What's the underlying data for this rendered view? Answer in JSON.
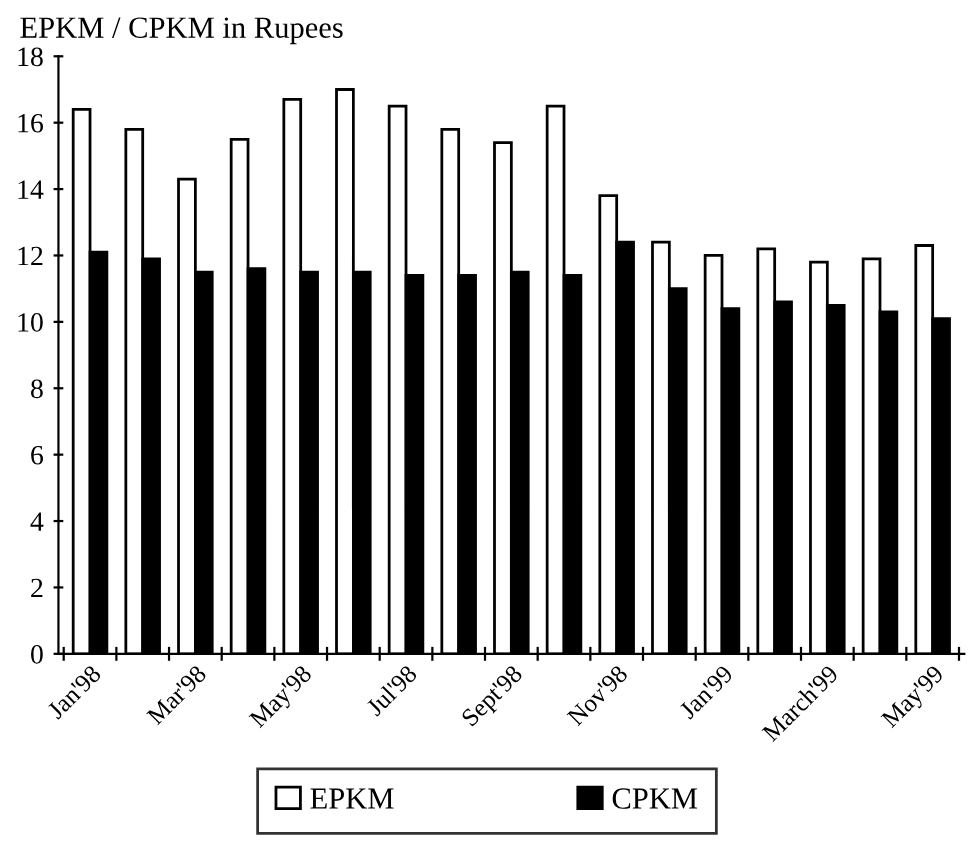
{
  "chart_data": {
    "type": "bar",
    "title": "EPKM / CPKM in Rupees",
    "categories": [
      "Jan'98",
      null,
      "Mar'98",
      null,
      "May'98",
      null,
      "Jul'98",
      null,
      "Sept'98",
      null,
      "Nov'98",
      null,
      "Jan'99",
      null,
      "March'99",
      null,
      "May'99"
    ],
    "series": [
      {
        "name": "EPKM",
        "color": "#ffffff",
        "values": [
          16.4,
          15.8,
          14.3,
          15.5,
          16.7,
          17.0,
          16.5,
          15.8,
          15.4,
          16.5,
          13.8,
          12.4,
          12.0,
          12.2,
          11.8,
          11.9,
          12.3
        ]
      },
      {
        "name": "CPKM",
        "color": "#000000",
        "values": [
          12.1,
          11.9,
          11.5,
          11.6,
          11.5,
          11.5,
          11.4,
          11.4,
          11.5,
          11.4,
          12.4,
          11.0,
          10.4,
          10.6,
          10.5,
          10.3,
          10.1
        ]
      }
    ],
    "ylim": [
      0,
      18
    ],
    "yticks": [
      0,
      2,
      4,
      6,
      8,
      10,
      12,
      14,
      16,
      18
    ],
    "grid": false,
    "legend": "bottom"
  }
}
